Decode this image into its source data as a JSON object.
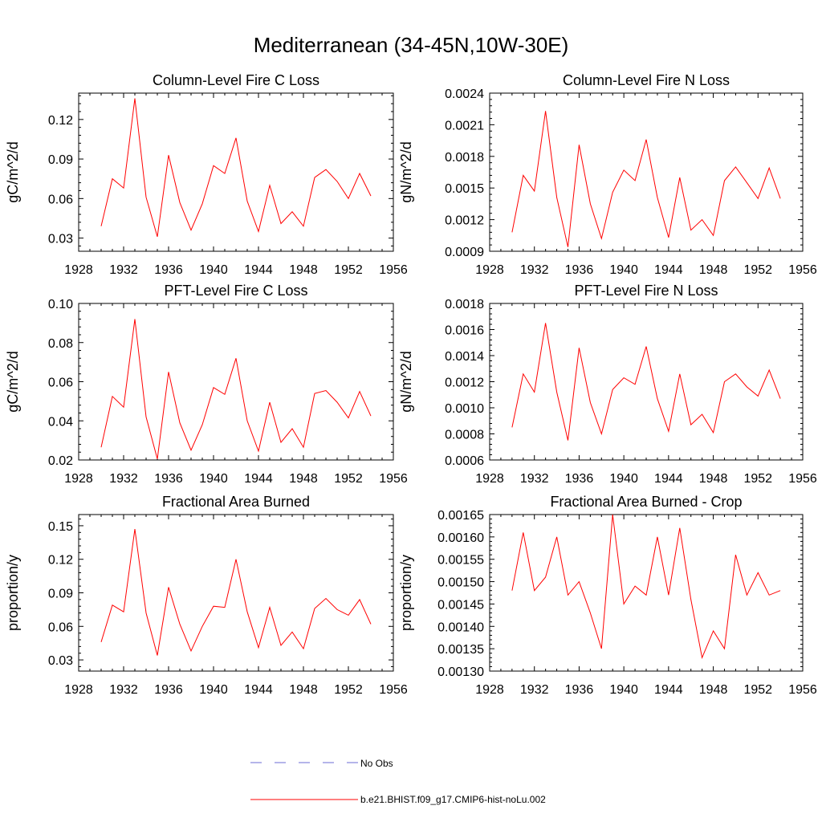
{
  "figure": {
    "title": "Mediterranean (34-45N,10W-30E)",
    "line_color": "#ff0000",
    "obs_color": "#6b6bd6"
  },
  "legend": {
    "placement": "bottom-center",
    "items": [
      {
        "label": "No Obs",
        "style": "dashed",
        "color": "#6b6bd6"
      },
      {
        "label": "b.e21.BHIST.f09_g17.CMIP6-hist-noLu.002",
        "style": "solid",
        "color": "#ff0000"
      }
    ]
  },
  "chart_data": [
    {
      "type": "line",
      "title": "Column-Level Fire C Loss",
      "ylabel": "gC/m^2/d",
      "xlim": [
        1928,
        1956
      ],
      "xticks": [
        "1928",
        "1932",
        "1936",
        "1940",
        "1944",
        "1948",
        "1952",
        "1956"
      ],
      "ylim": [
        0.02,
        0.14
      ],
      "yticks": [
        "0.03",
        "0.06",
        "0.09",
        "0.12"
      ],
      "x": [
        1930,
        1931,
        1932,
        1933,
        1934,
        1935,
        1936,
        1937,
        1938,
        1939,
        1940,
        1941,
        1942,
        1943,
        1944,
        1945,
        1946,
        1947,
        1948,
        1949,
        1950,
        1951,
        1952,
        1953,
        1954
      ],
      "values": [
        0.039,
        0.075,
        0.068,
        0.136,
        0.061,
        0.031,
        0.093,
        0.057,
        0.036,
        0.056,
        0.085,
        0.079,
        0.106,
        0.058,
        0.035,
        0.07,
        0.041,
        0.05,
        0.039,
        0.076,
        0.082,
        0.073,
        0.06,
        0.079,
        0.062
      ]
    },
    {
      "type": "line",
      "title": "Column-Level Fire N Loss",
      "ylabel": "gN/m^2/d",
      "xlim": [
        1928,
        1956
      ],
      "xticks": [
        "1928",
        "1932",
        "1936",
        "1940",
        "1944",
        "1948",
        "1952",
        "1956"
      ],
      "ylim": [
        0.0009,
        0.0024
      ],
      "yticks": [
        "0.0009",
        "0.0012",
        "0.0015",
        "0.0018",
        "0.0021",
        "0.0024"
      ],
      "x": [
        1930,
        1931,
        1932,
        1933,
        1934,
        1935,
        1936,
        1937,
        1938,
        1939,
        1940,
        1941,
        1942,
        1943,
        1944,
        1945,
        1946,
        1947,
        1948,
        1949,
        1950,
        1951,
        1952,
        1953,
        1954
      ],
      "values": [
        0.00108,
        0.00162,
        0.00147,
        0.00223,
        0.00141,
        0.00094,
        0.00191,
        0.00135,
        0.00102,
        0.00146,
        0.00167,
        0.00157,
        0.00196,
        0.00141,
        0.00103,
        0.0016,
        0.0011,
        0.0012,
        0.00105,
        0.00157,
        0.0017,
        0.00155,
        0.0014,
        0.00169,
        0.0014
      ]
    },
    {
      "type": "line",
      "title": "PFT-Level Fire C Loss",
      "ylabel": "gC/m^2/d",
      "xlim": [
        1928,
        1956
      ],
      "xticks": [
        "1928",
        "1932",
        "1936",
        "1940",
        "1944",
        "1948",
        "1952",
        "1956"
      ],
      "ylim": [
        0.02,
        0.1
      ],
      "yticks": [
        "0.02",
        "0.04",
        "0.06",
        "0.08",
        "0.10"
      ],
      "x": [
        1930,
        1931,
        1932,
        1933,
        1934,
        1935,
        1936,
        1937,
        1938,
        1939,
        1940,
        1941,
        1942,
        1943,
        1944,
        1945,
        1946,
        1947,
        1948,
        1949,
        1950,
        1951,
        1952,
        1953,
        1954
      ],
      "values": [
        0.0265,
        0.0525,
        0.047,
        0.092,
        0.042,
        0.0205,
        0.065,
        0.039,
        0.025,
        0.038,
        0.057,
        0.0535,
        0.072,
        0.04,
        0.0245,
        0.0495,
        0.029,
        0.036,
        0.0265,
        0.054,
        0.0555,
        0.0495,
        0.0415,
        0.055,
        0.0425
      ]
    },
    {
      "type": "line",
      "title": "PFT-Level Fire N Loss",
      "ylabel": "gN/m^2/d",
      "xlim": [
        1928,
        1956
      ],
      "xticks": [
        "1928",
        "1932",
        "1936",
        "1940",
        "1944",
        "1948",
        "1952",
        "1956"
      ],
      "ylim": [
        0.0006,
        0.0018
      ],
      "yticks": [
        "0.0006",
        "0.0008",
        "0.0010",
        "0.0012",
        "0.0014",
        "0.0016",
        "0.0018"
      ],
      "x": [
        1930,
        1931,
        1932,
        1933,
        1934,
        1935,
        1936,
        1937,
        1938,
        1939,
        1940,
        1941,
        1942,
        1943,
        1944,
        1945,
        1946,
        1947,
        1948,
        1949,
        1950,
        1951,
        1952,
        1953,
        1954
      ],
      "values": [
        0.00085,
        0.00126,
        0.00112,
        0.00165,
        0.00112,
        0.00075,
        0.00146,
        0.00104,
        0.0008,
        0.00114,
        0.00123,
        0.00118,
        0.00147,
        0.00107,
        0.00082,
        0.00126,
        0.00087,
        0.00095,
        0.00081,
        0.0012,
        0.00126,
        0.00116,
        0.00109,
        0.00129,
        0.00107
      ]
    },
    {
      "type": "line",
      "title": "Fractional Area Burned",
      "ylabel": "proportion/y",
      "xlim": [
        1928,
        1956
      ],
      "xticks": [
        "1928",
        "1932",
        "1936",
        "1940",
        "1944",
        "1948",
        "1952",
        "1956"
      ],
      "ylim": [
        0.02,
        0.16
      ],
      "yticks": [
        "0.03",
        "0.06",
        "0.09",
        "0.12",
        "0.15"
      ],
      "x": [
        1930,
        1931,
        1932,
        1933,
        1934,
        1935,
        1936,
        1937,
        1938,
        1939,
        1940,
        1941,
        1942,
        1943,
        1944,
        1945,
        1946,
        1947,
        1948,
        1949,
        1950,
        1951,
        1952,
        1953,
        1954
      ],
      "values": [
        0.046,
        0.079,
        0.073,
        0.147,
        0.072,
        0.034,
        0.095,
        0.062,
        0.038,
        0.06,
        0.078,
        0.077,
        0.12,
        0.073,
        0.041,
        0.077,
        0.043,
        0.055,
        0.04,
        0.076,
        0.085,
        0.075,
        0.07,
        0.084,
        0.062
      ]
    },
    {
      "type": "line",
      "title": "Fractional Area Burned - Crop",
      "ylabel": "proportion/y",
      "xlim": [
        1928,
        1956
      ],
      "xticks": [
        "1928",
        "1932",
        "1936",
        "1940",
        "1944",
        "1948",
        "1952",
        "1956"
      ],
      "ylim": [
        0.0013,
        0.00165
      ],
      "yticks": [
        "0.00130",
        "0.00135",
        "0.00140",
        "0.00145",
        "0.00150",
        "0.00155",
        "0.00160",
        "0.00165"
      ],
      "x": [
        1930,
        1931,
        1932,
        1933,
        1934,
        1935,
        1936,
        1937,
        1938,
        1939,
        1940,
        1941,
        1942,
        1943,
        1944,
        1945,
        1946,
        1947,
        1948,
        1949,
        1950,
        1951,
        1952,
        1953,
        1954
      ],
      "values": [
        0.00148,
        0.00161,
        0.00148,
        0.00151,
        0.0016,
        0.00147,
        0.0015,
        0.00143,
        0.00135,
        0.00165,
        0.00145,
        0.00149,
        0.00147,
        0.0016,
        0.00147,
        0.00162,
        0.00146,
        0.00133,
        0.00139,
        0.00135,
        0.00156,
        0.00147,
        0.00152,
        0.00147,
        0.00148
      ]
    }
  ]
}
